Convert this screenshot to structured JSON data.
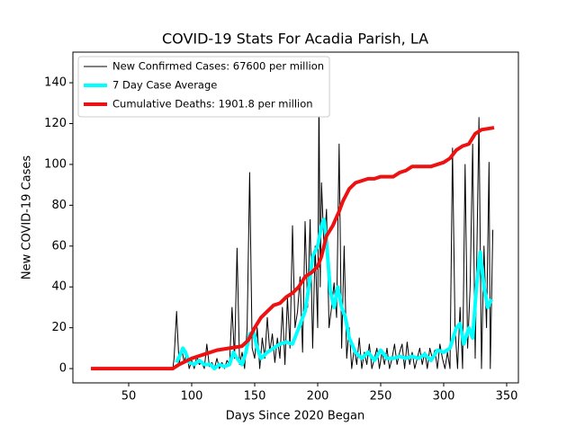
{
  "chart_data": {
    "type": "line",
    "title": "COVID-19 Stats For Acadia Parish, LA",
    "xlabel": "Days Since 2020 Began",
    "ylabel": "New COVID-19 Cases",
    "xlim": [
      5.7,
      359.3
    ],
    "ylim": [
      -7,
      155
    ],
    "xticks": [
      50,
      100,
      150,
      200,
      250,
      300,
      350
    ],
    "yticks": [
      0,
      20,
      40,
      60,
      80,
      100,
      120,
      140
    ],
    "legend": "upper left",
    "series": [
      {
        "name": "New Confirmed Cases: 67600 per million",
        "color": "#000000",
        "width": 1,
        "x": [
          85,
          86,
          88,
          90,
          92,
          94,
          96,
          98,
          100,
          102,
          104,
          106,
          108,
          110,
          112,
          114,
          116,
          118,
          120,
          122,
          124,
          126,
          128,
          130,
          132,
          134,
          136,
          138,
          140,
          142,
          144,
          146,
          148,
          150,
          152,
          154,
          156,
          158,
          160,
          162,
          164,
          166,
          168,
          170,
          172,
          174,
          176,
          178,
          180,
          182,
          184,
          186,
          188,
          190,
          192,
          194,
          196,
          198,
          200,
          201,
          202,
          203,
          205,
          207,
          209,
          211,
          213,
          215,
          217,
          219,
          221,
          223,
          225,
          227,
          229,
          231,
          233,
          235,
          237,
          239,
          241,
          243,
          245,
          247,
          249,
          251,
          253,
          255,
          257,
          259,
          261,
          263,
          265,
          267,
          269,
          271,
          273,
          275,
          277,
          279,
          281,
          283,
          285,
          287,
          289,
          291,
          293,
          295,
          297,
          299,
          301,
          303,
          305,
          307,
          309,
          311,
          313,
          315,
          317,
          319,
          321,
          323,
          325,
          327,
          328,
          330,
          332,
          334,
          336,
          337,
          339
        ],
        "values": [
          0,
          5,
          28,
          2,
          10,
          3,
          8,
          0,
          4,
          0,
          6,
          2,
          3,
          0,
          12,
          1,
          3,
          0,
          5,
          0,
          3,
          0,
          4,
          2,
          30,
          5,
          59,
          2,
          8,
          0,
          20,
          96,
          10,
          5,
          20,
          0,
          15,
          5,
          25,
          8,
          17,
          3,
          15,
          5,
          30,
          2,
          35,
          10,
          70,
          20,
          28,
          45,
          8,
          72,
          30,
          73,
          10,
          60,
          20,
          135,
          40,
          91,
          60,
          78,
          20,
          30,
          42,
          25,
          110,
          10,
          60,
          5,
          20,
          0,
          10,
          2,
          15,
          0,
          8,
          2,
          12,
          0,
          5,
          10,
          0,
          8,
          2,
          10,
          0,
          5,
          12,
          2,
          8,
          12,
          0,
          13,
          2,
          8,
          0,
          5,
          10,
          2,
          8,
          0,
          10,
          5,
          9,
          0,
          12,
          5,
          0,
          8,
          0,
          108,
          20,
          0,
          30,
          0,
          100,
          10,
          40,
          110,
          5,
          83,
          123,
          0,
          60,
          20,
          101,
          0,
          68
        ]
      },
      {
        "name": "7 Day Case Average",
        "color": "#00ffff",
        "width": 4,
        "x": [
          88,
          91,
          93,
          95,
          98,
          102,
          106,
          110,
          115,
          118,
          122,
          126,
          130,
          133,
          136,
          140,
          143,
          146,
          149,
          152,
          155,
          160,
          165,
          170,
          175,
          180,
          185,
          190,
          193,
          196,
          200,
          203,
          205,
          207,
          210,
          213,
          216,
          219,
          222,
          225,
          230,
          235,
          240,
          245,
          250,
          255,
          260,
          265,
          270,
          275,
          280,
          285,
          290,
          295,
          300,
          305,
          310,
          313,
          316,
          320,
          323,
          326,
          329,
          332,
          335,
          338
        ],
        "values": [
          3,
          7,
          10,
          8,
          3,
          2,
          4,
          2,
          2,
          0,
          2,
          1,
          2,
          8,
          5,
          2,
          8,
          17,
          18,
          10,
          5,
          8,
          10,
          12,
          13,
          12,
          20,
          28,
          40,
          55,
          60,
          70,
          73,
          62,
          38,
          30,
          40,
          30,
          25,
          15,
          8,
          5,
          8,
          4,
          9,
          5,
          5,
          6,
          5,
          6,
          5,
          7,
          4,
          9,
          8,
          10,
          20,
          22,
          12,
          20,
          15,
          40,
          57,
          40,
          30,
          34
        ]
      },
      {
        "name": "Cumulative Deaths: 1901.8 per million",
        "color": "#ee1111",
        "width": 4,
        "x": [
          20,
          85,
          90,
          100,
          110,
          120,
          130,
          140,
          145,
          150,
          155,
          160,
          165,
          170,
          175,
          180,
          185,
          190,
          195,
          200,
          203,
          207,
          212,
          217,
          220,
          225,
          230,
          235,
          240,
          245,
          250,
          260,
          265,
          270,
          275,
          290,
          295,
          300,
          305,
          310,
          315,
          320,
          325,
          330,
          340
        ],
        "values": [
          0,
          0,
          2,
          5,
          7,
          9,
          10,
          11,
          14,
          20,
          25,
          28,
          31,
          32,
          35,
          37,
          40,
          45,
          47,
          50,
          55,
          65,
          70,
          77,
          82,
          88,
          91,
          92,
          93,
          93,
          94,
          94,
          96,
          97,
          99,
          99,
          100,
          101,
          103,
          107,
          109,
          110,
          115,
          117,
          118
        ]
      }
    ]
  }
}
